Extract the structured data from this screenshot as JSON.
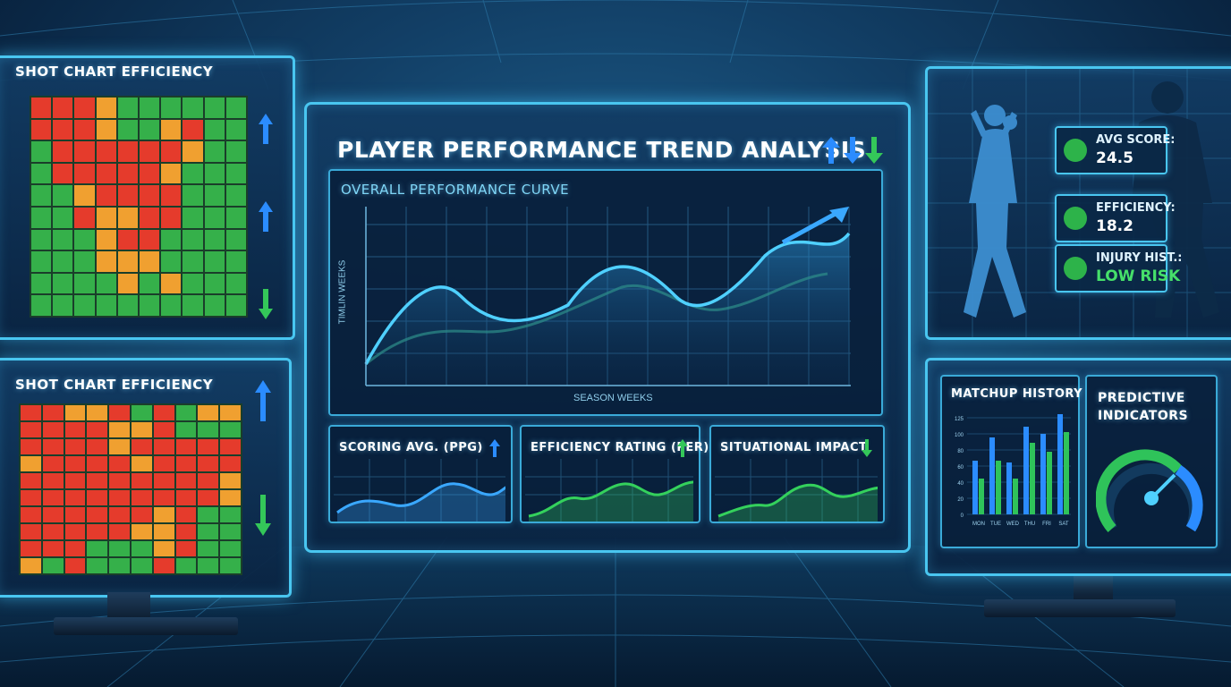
{
  "left_top": {
    "title": "SHOT CHART EFFICIENCY"
  },
  "left_bottom": {
    "title": "SHOT CHART EFFICIENCY"
  },
  "main": {
    "title": "PLAYER PERFORMANCE TREND ANALYSIS",
    "subtitle": "OVERALL PERFORMANCE CURVE",
    "y_axis_label": "TIMLIN WEEKS",
    "x_axis_label": "SEASON WEEKS"
  },
  "mini_charts": [
    {
      "label": "SCORING AVG. (PPG)",
      "trend": "up",
      "color": "#3aa8ff"
    },
    {
      "label": "EFFICIENCY RATING (PER)",
      "trend": "up",
      "color": "#34d15c"
    },
    {
      "label": "SITUATIONAL IMPACT",
      "trend": "down",
      "color": "#34d15c"
    }
  ],
  "player_stats": [
    {
      "label": "AVG SCORE:",
      "value": "24.5",
      "icon": "basketball-icon",
      "highlight": false
    },
    {
      "label": "EFFICIENCY:",
      "value": "18.2",
      "icon": "football-icon",
      "highlight": false
    },
    {
      "label": "INJURY HIST.:",
      "value": "LOW RISK",
      "icon": "running-figure-icon",
      "highlight": true
    }
  ],
  "matchup": {
    "title": "MATCHUP HISTORY",
    "y_ticks": [
      "125",
      "100",
      "80",
      "60",
      "40",
      "20",
      "0"
    ],
    "days": [
      "MON",
      "TUE",
      "WED",
      "THU",
      "FRI",
      "SAT"
    ]
  },
  "predictive": {
    "title_line1": "PREDICTIVE",
    "title_line2": "INDICATORS"
  },
  "colors": {
    "accent": "#49c6f0",
    "heat_red": "#e53b2c",
    "heat_orange": "#f0a030",
    "heat_green": "#35b04a",
    "up_arrow": "#2b8cff",
    "down_arrow": "#34c759"
  }
}
